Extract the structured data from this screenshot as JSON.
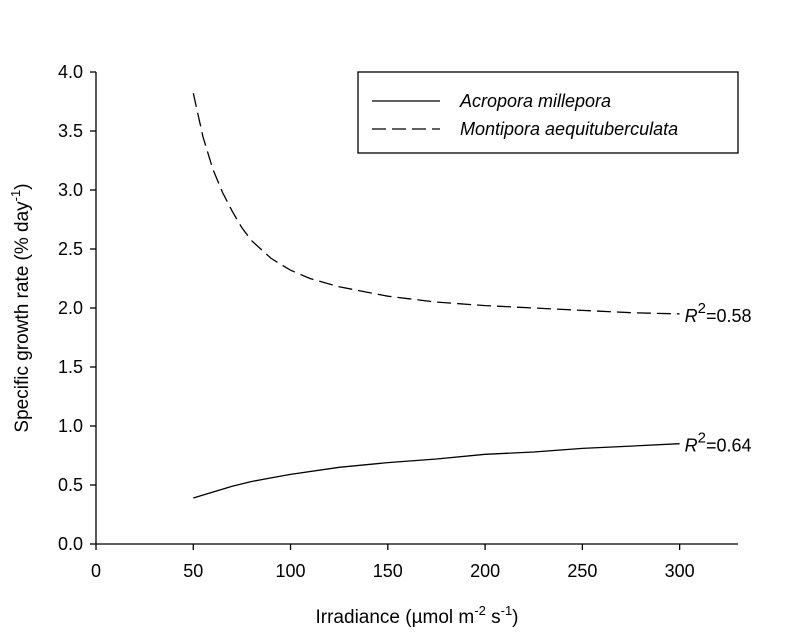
{
  "chart_data": {
    "type": "line",
    "xlabel": {
      "pre": "Irradiance (µmol m",
      "sup1": "-2",
      "mid": " s",
      "sup2": "-1",
      "post": ")"
    },
    "ylabel": {
      "pre": "Specific growth rate (% day",
      "sup": "-1",
      "post": ")"
    },
    "xlim": [
      0,
      330
    ],
    "ylim": [
      0,
      4.0
    ],
    "xticks": [
      0,
      50,
      100,
      150,
      200,
      250,
      300
    ],
    "yticks": [
      0.0,
      0.5,
      1.0,
      1.5,
      2.0,
      2.5,
      3.0,
      3.5,
      4.0
    ],
    "xtick_labels": [
      "0",
      "50",
      "100",
      "150",
      "200",
      "250",
      "300"
    ],
    "ytick_labels": [
      "0.0",
      "0.5",
      "1.0",
      "1.5",
      "2.0",
      "2.5",
      "3.0",
      "3.5",
      "4.0"
    ],
    "grid": false,
    "legend_position": "top-right",
    "series": [
      {
        "name": "Acropora millepora",
        "style": "solid",
        "color": "#000000",
        "x": [
          50,
          60,
          70,
          80,
          90,
          100,
          125,
          150,
          175,
          200,
          225,
          250,
          275,
          300
        ],
        "y": [
          0.39,
          0.44,
          0.49,
          0.53,
          0.56,
          0.59,
          0.65,
          0.69,
          0.72,
          0.76,
          0.78,
          0.81,
          0.83,
          0.85
        ],
        "annotation": {
          "pre": "R",
          "sup": "2",
          "post": "=0.64",
          "x": 300,
          "y": 0.85
        }
      },
      {
        "name": "Montipora aequituberculata",
        "style": "dashed",
        "color": "#000000",
        "x": [
          50,
          55,
          60,
          65,
          70,
          75,
          80,
          90,
          100,
          110,
          125,
          150,
          175,
          200,
          225,
          250,
          275,
          300
        ],
        "y": [
          3.82,
          3.45,
          3.18,
          2.98,
          2.82,
          2.68,
          2.57,
          2.42,
          2.32,
          2.25,
          2.18,
          2.1,
          2.05,
          2.02,
          2.0,
          1.98,
          1.96,
          1.95
        ],
        "annotation": {
          "pre": "R",
          "sup": "2",
          "post": "=0.58",
          "x": 300,
          "y": 1.95
        }
      }
    ]
  }
}
